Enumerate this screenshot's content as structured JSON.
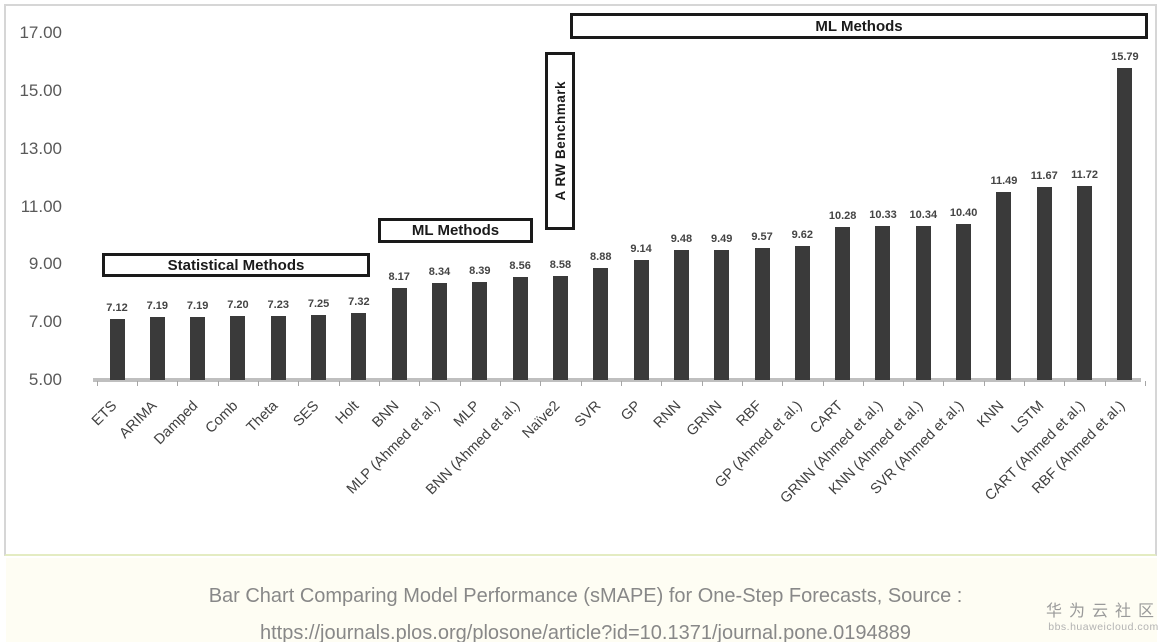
{
  "chart_data": {
    "type": "bar",
    "title": "",
    "xlabel": "",
    "ylabel": "",
    "ylim": [
      5,
      17
    ],
    "grid": false,
    "legend": false,
    "yticks": [
      "17.00",
      "15.00",
      "13.00",
      "11.00",
      "9.00",
      "7.00",
      "5.00"
    ],
    "categories": [
      "ETS",
      "ARIMA",
      "Damped",
      "Comb",
      "Theta",
      "SES",
      "Holt",
      "BNN",
      "MLP (Ahmed et al.)",
      "MLP",
      "BNN (Ahmed et al.)",
      "Naïve2",
      "SVR",
      "GP",
      "RNN",
      "GRNN",
      "RBF",
      "GP (Ahmed et al.)",
      "CART",
      "GRNN (Ahmed et al.)",
      "KNN (Ahmed et al.)",
      "SVR (Ahmed et al.)",
      "KNN",
      "LSTM",
      "CART (Ahmed et al.)",
      "RBF (Ahmed et al.)"
    ],
    "values": [
      7.12,
      7.19,
      7.19,
      7.2,
      7.23,
      7.25,
      7.32,
      8.17,
      8.34,
      8.39,
      8.56,
      8.58,
      8.88,
      9.14,
      9.48,
      9.49,
      9.57,
      9.62,
      10.28,
      10.33,
      10.34,
      10.4,
      11.49,
      11.67,
      11.72,
      15.79
    ],
    "value_labels": [
      "7.12",
      "7.19",
      "7.19",
      "7.20",
      "7.23",
      "7.25",
      "7.32",
      "8.17",
      "8.34",
      "8.39",
      "8.56",
      "8.58",
      "8.88",
      "9.14",
      "9.48",
      "9.49",
      "9.57",
      "9.62",
      "10.28",
      "10.33",
      "10.34",
      "10.40",
      "11.49",
      "11.67",
      "11.72",
      "15.79"
    ],
    "annotations": [
      {
        "id": "statistical-methods",
        "label": "Statistical Methods"
      },
      {
        "id": "ml-methods-1",
        "label": "ML Methods"
      },
      {
        "id": "rw-benchmark",
        "label": "A RW Benchmark"
      },
      {
        "id": "ml-methods-2",
        "label": "ML Methods"
      }
    ],
    "colors": {
      "bar": "#3a3a3a",
      "axis_line": "#bfbfbf",
      "tick_text": "#595959",
      "value_text": "#444444",
      "annotation_border": "#1a1a1a"
    }
  },
  "caption": {
    "line1": "Bar Chart Comparing Model Performance (sMAPE) for One-Step Forecasts, Source :",
    "line2": "https://journals.plos.org/plosone/article?id=10.1371/journal.pone.0194889"
  },
  "watermark": {
    "title": "华为云社区",
    "subtitle": "bbs.huaweicloud.com"
  }
}
